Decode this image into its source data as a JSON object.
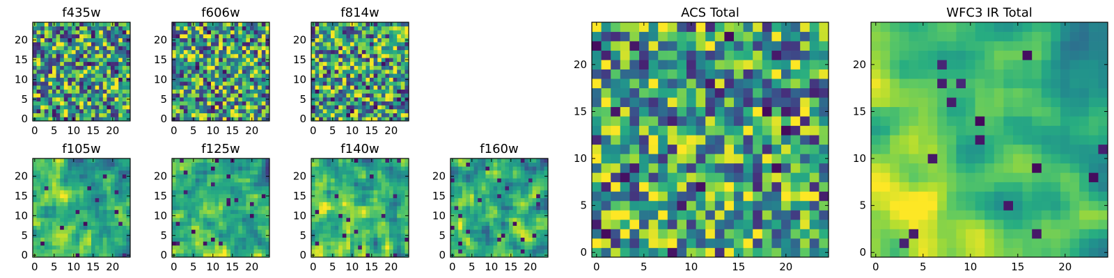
{
  "chart_data": [
    {
      "id": "f435w",
      "type": "heatmap",
      "title": "f435w",
      "grid_size": 25,
      "xlim": [
        0,
        24
      ],
      "ylim": [
        0,
        24
      ],
      "xticks": [
        0,
        5,
        10,
        15,
        20
      ],
      "yticks": [
        0,
        5,
        10,
        15,
        20
      ],
      "colormap": "viridis",
      "pattern_seed": 11,
      "smoothness": 0,
      "gradient": 0
    },
    {
      "id": "f606w",
      "type": "heatmap",
      "title": "f606w",
      "grid_size": 25,
      "xlim": [
        0,
        24
      ],
      "ylim": [
        0,
        24
      ],
      "xticks": [
        0,
        5,
        10,
        15,
        20
      ],
      "yticks": [
        0,
        5,
        10,
        15,
        20
      ],
      "colormap": "viridis",
      "pattern_seed": 23,
      "smoothness": 0,
      "gradient": 0
    },
    {
      "id": "f814w",
      "type": "heatmap",
      "title": "f814w",
      "grid_size": 25,
      "xlim": [
        0,
        24
      ],
      "ylim": [
        0,
        24
      ],
      "xticks": [
        0,
        5,
        10,
        15,
        20
      ],
      "yticks": [
        0,
        5,
        10,
        15,
        20
      ],
      "colormap": "viridis",
      "pattern_seed": 37,
      "smoothness": 0,
      "gradient": 0
    },
    {
      "id": "f105w",
      "type": "heatmap",
      "title": "f105w",
      "grid_size": 25,
      "xlim": [
        0,
        24
      ],
      "ylim": [
        0,
        24
      ],
      "xticks": [
        0,
        5,
        10,
        15,
        20
      ],
      "yticks": [
        0,
        5,
        10,
        15,
        20
      ],
      "colormap": "viridis",
      "pattern_seed": 41,
      "smoothness": 1,
      "gradient": 0.25
    },
    {
      "id": "f125w",
      "type": "heatmap",
      "title": "f125w",
      "grid_size": 25,
      "xlim": [
        0,
        24
      ],
      "ylim": [
        0,
        24
      ],
      "xticks": [
        0,
        5,
        10,
        15,
        20
      ],
      "yticks": [
        0,
        5,
        10,
        15,
        20
      ],
      "colormap": "viridis",
      "pattern_seed": 53,
      "smoothness": 1,
      "gradient": 0.25
    },
    {
      "id": "f140w",
      "type": "heatmap",
      "title": "f140w",
      "grid_size": 25,
      "xlim": [
        0,
        24
      ],
      "ylim": [
        0,
        24
      ],
      "xticks": [
        0,
        5,
        10,
        15,
        20
      ],
      "yticks": [
        0,
        5,
        10,
        15,
        20
      ],
      "colormap": "viridis",
      "pattern_seed": 67,
      "smoothness": 1,
      "gradient": 0.25
    },
    {
      "id": "f160w",
      "type": "heatmap",
      "title": "f160w",
      "grid_size": 25,
      "xlim": [
        0,
        24
      ],
      "ylim": [
        0,
        24
      ],
      "xticks": [
        0,
        5,
        10,
        15,
        20
      ],
      "yticks": [
        0,
        5,
        10,
        15,
        20
      ],
      "colormap": "viridis",
      "pattern_seed": 79,
      "smoothness": 1,
      "gradient": 0.25
    },
    {
      "id": "acs-total",
      "type": "heatmap",
      "title": "ACS Total",
      "grid_size": 25,
      "xlim": [
        0,
        24
      ],
      "ylim": [
        0,
        24
      ],
      "xticks": [
        0,
        5,
        10,
        15,
        20
      ],
      "yticks": [
        0,
        5,
        10,
        15,
        20
      ],
      "colormap": "viridis",
      "pattern_seed": 97,
      "smoothness": 0,
      "gradient": 0.05
    },
    {
      "id": "wfc3-ir-total",
      "type": "heatmap",
      "title": "WFC3 IR Total",
      "grid_size": 25,
      "xlim": [
        0,
        24
      ],
      "ylim": [
        0,
        24
      ],
      "xticks": [
        0,
        5,
        10,
        15,
        20
      ],
      "yticks": [
        0,
        5,
        10,
        15,
        20
      ],
      "colormap": "viridis",
      "pattern_seed": 131,
      "smoothness": 2,
      "gradient": 0.45
    }
  ]
}
